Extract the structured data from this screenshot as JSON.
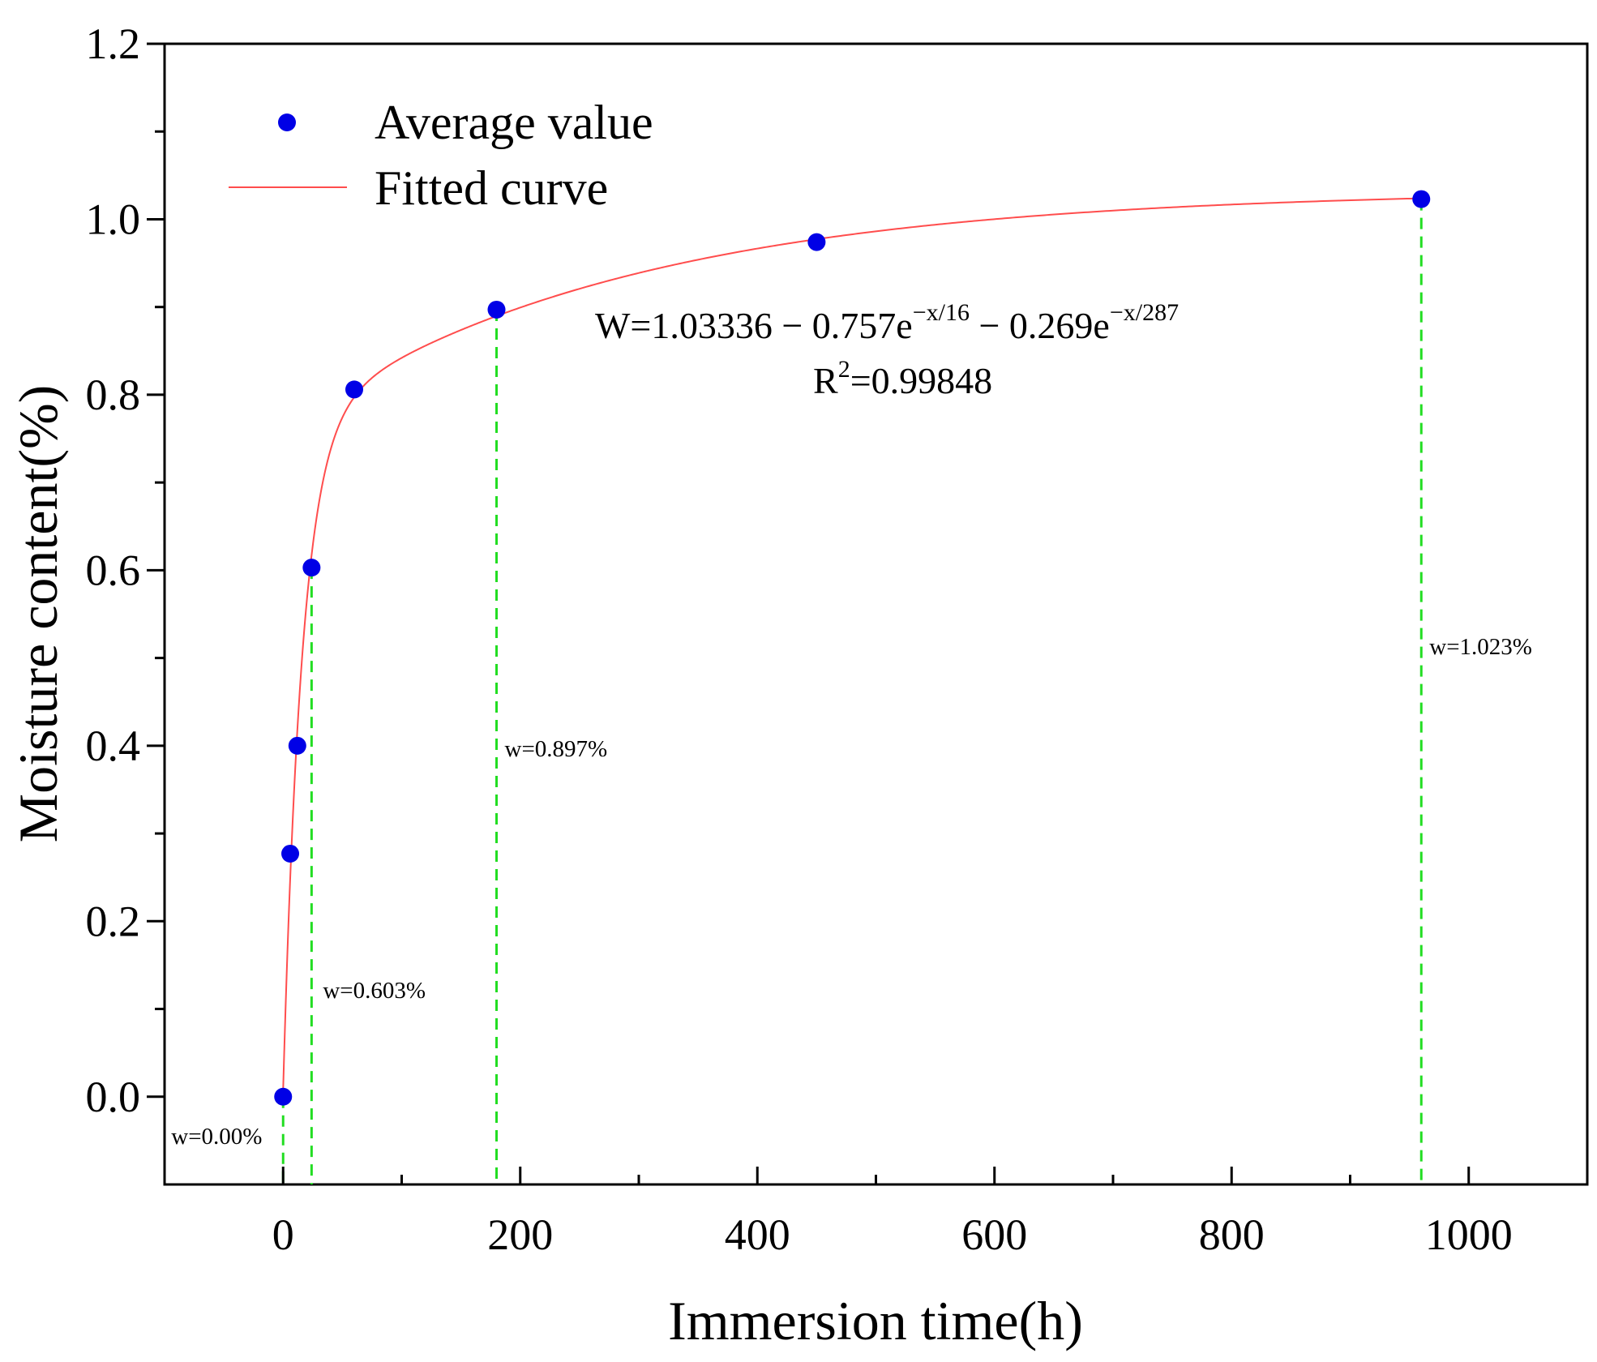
{
  "chart_data": {
    "type": "scatter",
    "xlabel": "Immersion time(h)",
    "ylabel": "Moisture content(%)",
    "xlim": [
      -100,
      1100
    ],
    "ylim": [
      -0.1,
      1.2
    ],
    "x_major_ticks": [
      0,
      200,
      400,
      600,
      800,
      1000
    ],
    "x_tick_labels": [
      "0",
      "200",
      "400",
      "600",
      "800",
      "1000"
    ],
    "x_minor_ticks": [
      100,
      300,
      500,
      700,
      900
    ],
    "y_major_ticks": [
      0.0,
      0.2,
      0.4,
      0.6,
      0.8,
      1.0,
      1.2
    ],
    "y_tick_labels": [
      "0.0",
      "0.2",
      "0.4",
      "0.6",
      "0.8",
      "1.0",
      "1.2"
    ],
    "y_minor_ticks": [
      0.1,
      0.3,
      0.5,
      0.7,
      0.9,
      1.1
    ],
    "series": [
      {
        "name": "Average value",
        "kind": "scatter",
        "color": "#0000e6",
        "x": [
          0,
          6,
          12,
          24,
          60,
          180,
          450,
          960
        ],
        "y": [
          0.0,
          0.277,
          0.4,
          0.603,
          0.806,
          0.897,
          0.974,
          1.023
        ]
      },
      {
        "name": "Fitted curve",
        "kind": "line",
        "color": "#ff4d4d",
        "model": {
          "c": 1.03336,
          "a1": 0.757,
          "t1": 16,
          "a2": 0.269,
          "t2": 287
        }
      }
    ],
    "legend": {
      "position": "top-left",
      "entries": [
        "Average value",
        "Fitted curve"
      ]
    },
    "equation": {
      "base": "W=1.03336 − 0.757e",
      "exp1": "−x/16",
      "mid": " − 0.269e",
      "exp2": "−x/287",
      "r2_prefix": "R",
      "r2_sup": "2",
      "r2_value": "=0.99848"
    },
    "reference_lines": {
      "color": "#22dd22",
      "items": [
        {
          "x": 0,
          "y": 0.0,
          "label": "w=0.00%"
        },
        {
          "x": 24,
          "y": 0.603,
          "label": "w=0.603%"
        },
        {
          "x": 180,
          "y": 0.897,
          "label": "w=0.897%"
        },
        {
          "x": 960,
          "y": 1.023,
          "label": "w=1.023%"
        }
      ]
    }
  }
}
